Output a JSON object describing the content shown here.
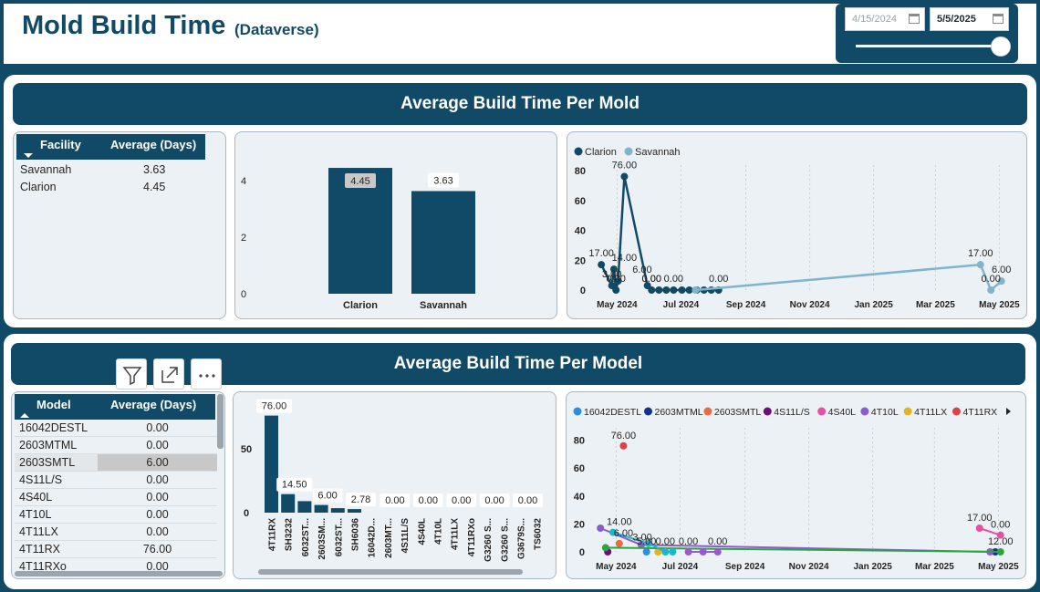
{
  "header": {
    "title": "Mold Build Time",
    "subtitle": "(Dataverse)"
  },
  "date_filter": {
    "start": "4/15/2024",
    "end": "5/5/2025",
    "slider_position": 1.0
  },
  "section_facility": {
    "title": "Average Build Time Per Mold",
    "table": {
      "columns": [
        "Facility",
        "Average (Days)"
      ],
      "rows": [
        {
          "name": "Savannah",
          "value": "3.63"
        },
        {
          "name": "Clarion",
          "value": "4.45"
        }
      ]
    }
  },
  "section_model": {
    "title": "Average Build Time Per Model",
    "table": {
      "columns": [
        "Model",
        "Average (Days)"
      ],
      "rows": [
        {
          "name": "16042DESTL",
          "value": "0.00"
        },
        {
          "name": "2603MTML",
          "value": "0.00"
        },
        {
          "name": "2603SMTL",
          "value": "6.00"
        },
        {
          "name": "4S11L/S",
          "value": "0.00"
        },
        {
          "name": "4S40L",
          "value": "0.00"
        },
        {
          "name": "4T10L",
          "value": "0.00"
        },
        {
          "name": "4T11LX",
          "value": "0.00"
        },
        {
          "name": "4T11RX",
          "value": "76.00"
        },
        {
          "name": "4T11RXo",
          "value": "0.00"
        }
      ]
    }
  },
  "colors": {
    "dark_teal": "#114a66",
    "light_teal": "#7fb4cc",
    "card_bg": "#ecf1f5"
  },
  "icons": [
    "filter-icon",
    "focus-mode-icon",
    "more-options-icon",
    "calendar-icon",
    "scroll-right-icon"
  ],
  "chart_data": [
    {
      "type": "bar",
      "categories": [
        "Clarion",
        "Savannah"
      ],
      "values": [
        4.45,
        3.63
      ],
      "data_labels": [
        "4.45",
        "3.63"
      ],
      "yticks": [
        "0",
        "2",
        "4"
      ],
      "ylim": [
        0,
        5
      ],
      "color": "#114a66"
    },
    {
      "type": "line",
      "legend": [
        "Clarion",
        "Savannah"
      ],
      "legend_position": "top-left",
      "x_ticks": [
        "May 2024",
        "Jul 2024",
        "Sep 2024",
        "Nov 2024",
        "Jan 2025",
        "Mar 2025",
        "May 2025"
      ],
      "y_ticks": [
        "0",
        "20",
        "40",
        "60",
        "80"
      ],
      "ylim": [
        0,
        80
      ],
      "series": [
        {
          "name": "Clarion",
          "color": "#114a66",
          "points": [
            {
              "x": "2024-04-16",
              "y": 17
            },
            {
              "x": "2024-04-26",
              "y": 3
            },
            {
              "x": "2024-04-28",
              "y": 14
            },
            {
              "x": "2024-04-30",
              "y": 0
            },
            {
              "x": "2024-05-02",
              "y": 6
            },
            {
              "x": "2024-05-08",
              "y": 76
            },
            {
              "x": "2024-05-30",
              "y": 3
            },
            {
              "x": "2024-06-03",
              "y": 0
            },
            {
              "x": "2024-06-10",
              "y": 0
            },
            {
              "x": "2024-06-17",
              "y": 0
            },
            {
              "x": "2024-06-24",
              "y": 0
            },
            {
              "x": "2024-07-02",
              "y": 0
            },
            {
              "x": "2024-07-09",
              "y": 0
            },
            {
              "x": "2024-07-16",
              "y": 0
            },
            {
              "x": "2024-07-23",
              "y": 0
            },
            {
              "x": "2024-07-30",
              "y": 0
            },
            {
              "x": "2024-08-06",
              "y": 0
            }
          ]
        },
        {
          "name": "Savannah",
          "color": "#7fb4cc",
          "points": [
            {
              "x": "2024-07-15",
              "y": 0
            },
            {
              "x": "2025-04-13",
              "y": 17
            },
            {
              "x": "2025-04-23",
              "y": 0
            },
            {
              "x": "2025-05-03",
              "y": 6
            }
          ]
        }
      ],
      "data_labels": [
        {
          "x": "2024-04-16",
          "y": 17,
          "text": "17.00"
        },
        {
          "x": "2024-04-26",
          "y": 3,
          "text": "3.00"
        },
        {
          "x": "2024-04-30",
          "y": 0,
          "text": "0.00"
        },
        {
          "x": "2024-05-08",
          "y": 76,
          "text": "76.00"
        },
        {
          "x": "2024-05-08",
          "y": 14,
          "text": "14.00"
        },
        {
          "x": "2024-05-25",
          "y": 6,
          "text": "6.00"
        },
        {
          "x": "2024-06-03",
          "y": 0,
          "text": "0.00"
        },
        {
          "x": "2024-06-03",
          "y": 0,
          "text": "0.00"
        },
        {
          "x": "2024-06-24",
          "y": 0,
          "text": "0.00"
        },
        {
          "x": "2024-08-06",
          "y": 0,
          "text": "0.00"
        },
        {
          "x": "2025-04-13",
          "y": 17,
          "text": "17.00"
        },
        {
          "x": "2025-04-23",
          "y": 0,
          "text": "0.00"
        },
        {
          "x": "2025-05-03",
          "y": 6,
          "text": "6.00"
        }
      ]
    },
    {
      "type": "bar",
      "categories": [
        "4T11RX",
        "SH3232",
        "6032ST...",
        "2603SM...",
        "6032ST...",
        "SH6036",
        "16042D...",
        "2603MT...",
        "4S11L/S",
        "4S40L",
        "4T10L",
        "4T11LX",
        "4T11RXo",
        "G3260 S...",
        "G3260 S...",
        "G3679S...",
        "TS6032"
      ],
      "values": [
        76,
        14.5,
        9,
        6,
        3.5,
        2.78,
        0,
        0,
        0,
        0,
        0,
        0,
        0,
        0,
        0,
        0,
        0
      ],
      "data_labels": [
        "76.00",
        "14.50",
        "",
        "6.00",
        "",
        "2.78",
        "",
        "0.00",
        "",
        "0.00",
        "",
        "0.00",
        "",
        "0.00",
        "",
        "0.00",
        ""
      ],
      "yticks": [
        "0",
        "50"
      ],
      "ylim": [
        0,
        80
      ],
      "color": "#114a66"
    },
    {
      "type": "scatter",
      "legend": [
        "16042DESTL",
        "2603MTML",
        "2603SMTL",
        "4S11L/S",
        "4S40L",
        "4T10L",
        "4T11LX",
        "4T11RX"
      ],
      "legend_position": "top",
      "x_ticks": [
        "May 2024",
        "Jul 2024",
        "Sep 2024",
        "Nov 2024",
        "Jan 2025",
        "Mar 2025",
        "May 2025"
      ],
      "y_ticks": [
        "0",
        "20",
        "40",
        "60",
        "80"
      ],
      "ylim": [
        0,
        85
      ],
      "series": [
        {
          "name": "16042DESTL",
          "color": "#2b8fe0",
          "points": [
            {
              "x": "2024-05-30",
              "y": 0
            }
          ]
        },
        {
          "name": "2603MTML",
          "color": "#15328c",
          "points": [
            {
              "x": "2025-04-28",
              "y": 0
            }
          ]
        },
        {
          "name": "2603SMTL",
          "color": "#e86b44",
          "points": [
            {
              "x": "2024-05-04",
              "y": 6
            }
          ]
        },
        {
          "name": "4S11L/S",
          "color": "#6b0f74",
          "points": [
            {
              "x": "2024-04-23",
              "y": 0
            }
          ]
        },
        {
          "name": "4S40L",
          "color": "#e64fa2",
          "points": [
            {
              "x": "2025-04-13",
              "y": 17
            },
            {
              "x": "2025-05-03",
              "y": 12
            }
          ]
        },
        {
          "name": "4T10L",
          "color": "#8b5ccc",
          "points": [
            {
              "x": "2024-04-16",
              "y": 17
            },
            {
              "x": "2024-05-25",
              "y": 5
            },
            {
              "x": "2025-04-23",
              "y": 0
            }
          ]
        },
        {
          "name": "4T11LX",
          "color": "#e0b522",
          "points": [
            {
              "x": "2024-06-10",
              "y": 0
            }
          ]
        },
        {
          "name": "4T11RX",
          "color": "#d9434a",
          "points": [
            {
              "x": "2024-05-08",
              "y": 76
            }
          ]
        },
        {
          "name": "",
          "color": "#2da343",
          "points": [
            {
              "x": "2024-04-21",
              "y": 3
            },
            {
              "x": "2025-05-03",
              "y": 0
            }
          ]
        },
        {
          "name": "",
          "color": "#1eb6c9",
          "points": [
            {
              "x": "2024-04-28",
              "y": 14
            },
            {
              "x": "2024-06-01",
              "y": 6
            },
            {
              "x": "2024-06-17",
              "y": 0
            },
            {
              "x": "2024-06-24",
              "y": 0
            }
          ]
        },
        {
          "name": "",
          "color": "#9c58d1",
          "points": [
            {
              "x": "2024-07-09",
              "y": 0
            },
            {
              "x": "2024-07-23",
              "y": 0
            },
            {
              "x": "2024-08-06",
              "y": 0
            }
          ]
        }
      ],
      "data_labels": [
        {
          "x": "2024-05-08",
          "y": 76,
          "text": "76.00"
        },
        {
          "x": "2024-05-04",
          "y": 14,
          "text": "14.00"
        },
        {
          "x": "2024-05-08",
          "y": 6,
          "text": "6.00"
        },
        {
          "x": "2024-05-26",
          "y": 3,
          "text": "3.00"
        },
        {
          "x": "2024-05-30",
          "y": 0,
          "text": "5.00"
        },
        {
          "x": "2024-06-17",
          "y": 0,
          "text": "0.00"
        },
        {
          "x": "2024-07-09",
          "y": 0,
          "text": "0.00"
        },
        {
          "x": "2024-08-06",
          "y": 0,
          "text": "0.00"
        },
        {
          "x": "2025-04-13",
          "y": 17,
          "text": "17.00"
        },
        {
          "x": "2025-05-03",
          "y": 12,
          "text": "0.00"
        },
        {
          "x": "2025-05-03",
          "y": 0,
          "text": "12.00"
        }
      ]
    }
  ]
}
